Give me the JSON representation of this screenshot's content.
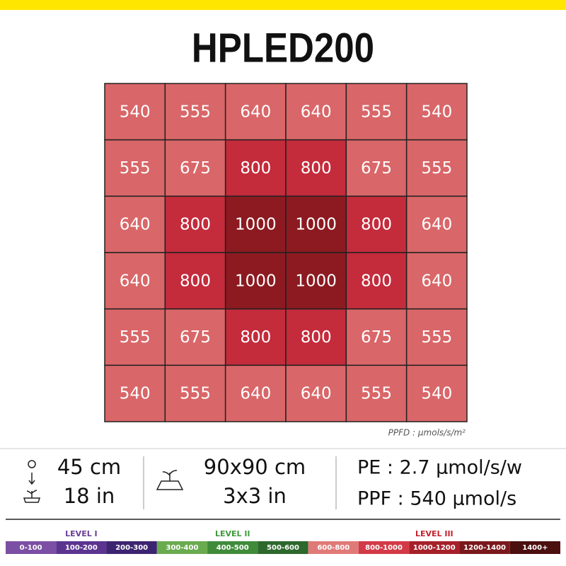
{
  "header": {
    "title": "HPLED200"
  },
  "grid": {
    "rows": [
      [
        540,
        555,
        640,
        640,
        555,
        540
      ],
      [
        555,
        675,
        800,
        800,
        675,
        555
      ],
      [
        640,
        800,
        1000,
        1000,
        800,
        640
      ],
      [
        640,
        800,
        1000,
        1000,
        800,
        640
      ],
      [
        555,
        675,
        800,
        800,
        675,
        555
      ],
      [
        540,
        555,
        640,
        640,
        555,
        540
      ]
    ],
    "colors": [
      [
        "#d96668",
        "#d96668",
        "#d96668",
        "#d96668",
        "#d96668",
        "#d96668"
      ],
      [
        "#d96668",
        "#d96668",
        "#c42b3b",
        "#c42b3b",
        "#d96668",
        "#d96668"
      ],
      [
        "#d96668",
        "#c42b3b",
        "#8c1a20",
        "#8c1a20",
        "#c42b3b",
        "#d96668"
      ],
      [
        "#d96668",
        "#c42b3b",
        "#8c1a20",
        "#8c1a20",
        "#c42b3b",
        "#d96668"
      ],
      [
        "#d96668",
        "#d96668",
        "#c42b3b",
        "#c42b3b",
        "#d96668",
        "#d96668"
      ],
      [
        "#d96668",
        "#d96668",
        "#d96668",
        "#d96668",
        "#d96668",
        "#d96668"
      ]
    ],
    "unit_note": "PPFD : µmols/s/m²"
  },
  "specs": {
    "height": [
      "45 cm",
      "18 in"
    ],
    "area": [
      "90x90 cm",
      "3x3 in"
    ],
    "output": [
      "PE : 2.7 µmol/s/w",
      "PPF : 540 µmol/s"
    ]
  },
  "legend": {
    "levels": [
      {
        "label": "LEVEL I",
        "color": "#6a3e98"
      },
      {
        "label": "LEVEL II",
        "color": "#3f9a3c"
      },
      {
        "label": "LEVEL III",
        "color": "#c4222e"
      }
    ],
    "items": [
      {
        "label": "0-100",
        "color": "#7b4fa3"
      },
      {
        "label": "100-200",
        "color": "#5b3490"
      },
      {
        "label": "200-300",
        "color": "#3d2470"
      },
      {
        "label": "300-400",
        "color": "#6aab4f"
      },
      {
        "label": "400-500",
        "color": "#3f8b3a"
      },
      {
        "label": "500-600",
        "color": "#2d682d"
      },
      {
        "label": "600-800",
        "color": "#e07a78"
      },
      {
        "label": "800-1000",
        "color": "#d33a47"
      },
      {
        "label": "1000-1200",
        "color": "#a6202a"
      },
      {
        "label": "1200-1400",
        "color": "#7a191d"
      },
      {
        "label": "1400+",
        "color": "#4c0f10"
      }
    ]
  }
}
